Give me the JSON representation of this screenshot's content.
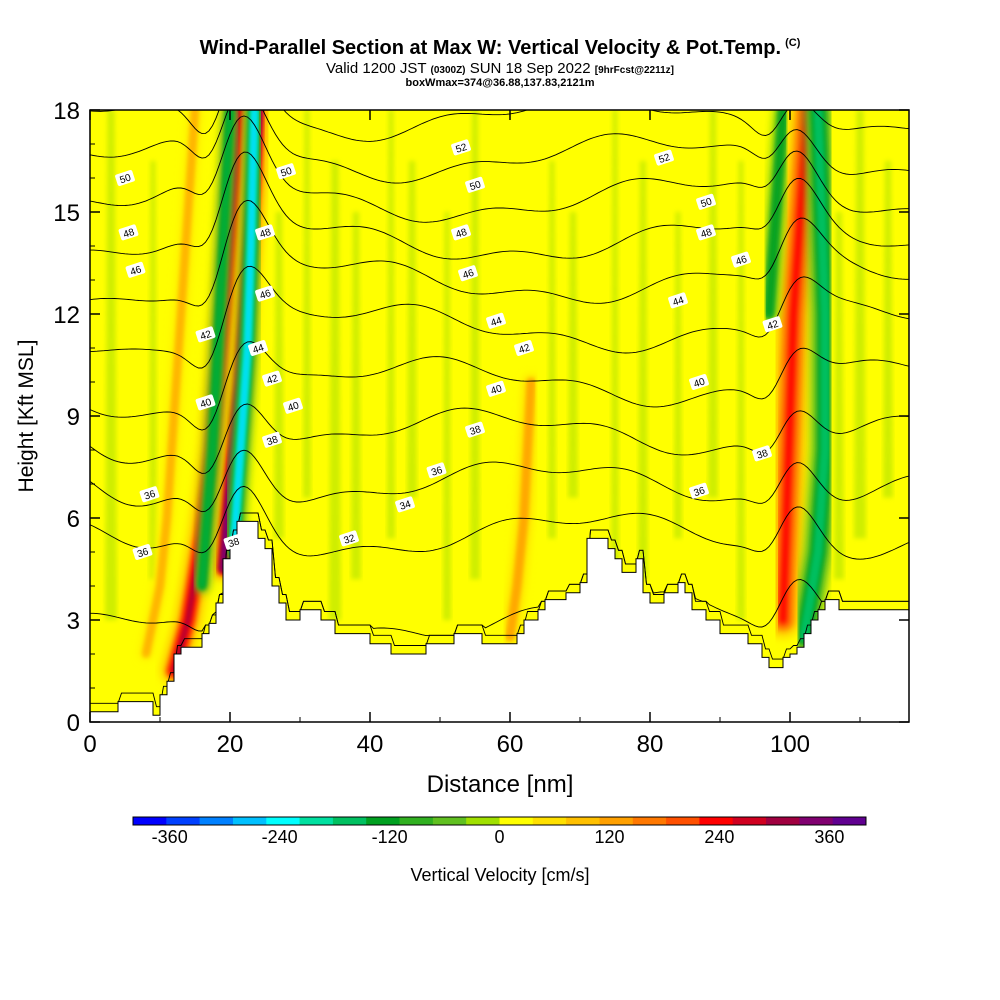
{
  "header": {
    "title": "Wind-Parallel Section at Max W: Vertical Velocity & Pot.Temp.",
    "title_mark": "(C)",
    "valid_prefix": "Valid 1200 JST",
    "valid_utc": "(0300Z)",
    "valid_date": "SUN 18 Sep 2022",
    "forecast": "[9hrFcst@2211z]",
    "box_info": "boxWmax=374@36.88,137.83,2121m"
  },
  "chart_data": {
    "type": "heatmap",
    "title": "Wind-Parallel Section at Max W: Vertical Velocity & Pot.Temp.",
    "xlabel": "Distance [nm]",
    "ylabel": "Height [Kft MSL]",
    "xlim": [
      0,
      117
    ],
    "ylim": [
      0,
      18
    ],
    "x_ticks": [
      "0",
      "20",
      "40",
      "60",
      "80",
      "100"
    ],
    "y_ticks": [
      "0",
      "3",
      "6",
      "9",
      "12",
      "15",
      "18"
    ],
    "colorbar": {
      "label": "Vertical Velocity [cm/s]",
      "tick_labels": [
        "-360",
        "-240",
        "-120",
        "0",
        "120",
        "240",
        "360"
      ],
      "range": [
        -400,
        400
      ],
      "colors": [
        "#0000ff",
        "#0040ff",
        "#0080ff",
        "#00c0ff",
        "#00ffff",
        "#00e0a0",
        "#00c060",
        "#00a020",
        "#30b020",
        "#60c020",
        "#a0e000",
        "#ffff00",
        "#ffe000",
        "#ffc000",
        "#ffa000",
        "#ff7800",
        "#ff5000",
        "#ff0000",
        "#d00020",
        "#a00040",
        "#800070",
        "#600090"
      ]
    },
    "terrain_kft": [
      [
        0,
        0.3
      ],
      [
        4,
        0.3
      ],
      [
        4,
        0.6
      ],
      [
        9,
        0.6
      ],
      [
        9,
        0.2
      ],
      [
        10,
        0.2
      ],
      [
        10,
        0.8
      ],
      [
        11,
        0.8
      ],
      [
        11,
        1.2
      ],
      [
        12,
        1.2
      ],
      [
        12,
        2
      ],
      [
        13,
        2
      ],
      [
        13,
        2.2
      ],
      [
        16,
        2.2
      ],
      [
        16,
        2.6
      ],
      [
        17,
        2.6
      ],
      [
        17,
        2.9
      ],
      [
        18,
        2.9
      ],
      [
        18,
        3.5
      ],
      [
        19,
        3.5
      ],
      [
        19,
        4.8
      ],
      [
        20,
        4.8
      ],
      [
        20,
        5.4
      ],
      [
        21,
        5.4
      ],
      [
        21,
        5.9
      ],
      [
        24,
        5.9
      ],
      [
        24,
        5.4
      ],
      [
        25,
        5.4
      ],
      [
        25,
        5.1
      ],
      [
        26,
        5.1
      ],
      [
        26,
        4
      ],
      [
        27,
        4
      ],
      [
        27,
        3.5
      ],
      [
        28,
        3.5
      ],
      [
        28,
        3
      ],
      [
        30,
        3
      ],
      [
        30,
        3.3
      ],
      [
        33,
        3.3
      ],
      [
        33,
        3
      ],
      [
        35,
        3
      ],
      [
        35,
        2.6
      ],
      [
        40,
        2.6
      ],
      [
        40,
        2.3
      ],
      [
        43,
        2.3
      ],
      [
        43,
        2
      ],
      [
        48,
        2
      ],
      [
        48,
        2.3
      ],
      [
        52,
        2.3
      ],
      [
        52,
        2.6
      ],
      [
        56,
        2.6
      ],
      [
        56,
        2.3
      ],
      [
        61,
        2.3
      ],
      [
        61,
        2.6
      ],
      [
        62,
        2.6
      ],
      [
        62,
        3
      ],
      [
        64,
        3
      ],
      [
        64,
        3.3
      ],
      [
        65,
        3.3
      ],
      [
        65,
        3.6
      ],
      [
        68,
        3.6
      ],
      [
        68,
        3.8
      ],
      [
        70,
        3.8
      ],
      [
        70,
        4.1
      ],
      [
        71,
        4.1
      ],
      [
        71,
        5.4
      ],
      [
        74,
        5.4
      ],
      [
        74,
        5.1
      ],
      [
        75,
        5.1
      ],
      [
        75,
        4.8
      ],
      [
        76,
        4.8
      ],
      [
        76,
        4.4
      ],
      [
        78,
        4.4
      ],
      [
        78,
        4.8
      ],
      [
        79,
        4.8
      ],
      [
        79,
        3.8
      ],
      [
        80,
        3.8
      ],
      [
        80,
        3.5
      ],
      [
        82,
        3.5
      ],
      [
        82,
        3.8
      ],
      [
        84,
        3.8
      ],
      [
        84,
        4.1
      ],
      [
        85,
        4.1
      ],
      [
        85,
        3.8
      ],
      [
        86,
        3.8
      ],
      [
        86,
        3.3
      ],
      [
        88,
        3.3
      ],
      [
        88,
        3
      ],
      [
        90,
        3
      ],
      [
        90,
        2.6
      ],
      [
        94,
        2.6
      ],
      [
        94,
        2.3
      ],
      [
        96,
        2.3
      ],
      [
        96,
        1.9
      ],
      [
        97,
        1.9
      ],
      [
        97,
        1.6
      ],
      [
        99,
        1.6
      ],
      [
        99,
        1.9
      ],
      [
        100,
        1.9
      ],
      [
        100,
        2
      ],
      [
        101,
        2
      ],
      [
        101,
        2.2
      ],
      [
        102,
        2.2
      ],
      [
        102,
        2.6
      ],
      [
        103,
        2.6
      ],
      [
        103,
        3
      ],
      [
        104,
        3
      ],
      [
        104,
        3.3
      ],
      [
        105,
        3.3
      ],
      [
        105,
        3.6
      ],
      [
        107,
        3.6
      ],
      [
        107,
        3.3
      ],
      [
        117,
        3.3
      ],
      [
        117,
        0
      ],
      [
        0,
        0
      ]
    ],
    "updrafts": [
      {
        "name": "ascent-band-1",
        "points": [
          [
            12,
            1.5
          ],
          [
            14,
            3
          ],
          [
            16,
            5.5
          ],
          [
            17.5,
            8
          ],
          [
            18.5,
            10.5
          ],
          [
            19.5,
            13
          ],
          [
            20.5,
            16
          ],
          [
            21,
            18
          ]
        ],
        "width_nm": 2.6,
        "w_peak": 280
      },
      {
        "name": "ascent-band-2",
        "points": [
          [
            19,
            4.5
          ],
          [
            20,
            7
          ],
          [
            21.5,
            10
          ],
          [
            22.5,
            13
          ],
          [
            23.5,
            16
          ],
          [
            24,
            18
          ]
        ],
        "width_nm": 2.0,
        "w_peak": 374
      },
      {
        "name": "ascent-band-3",
        "points": [
          [
            99,
            3
          ],
          [
            99.5,
            6
          ],
          [
            100,
            9
          ],
          [
            100.5,
            12
          ],
          [
            101.5,
            15
          ],
          [
            102.5,
            18
          ]
        ],
        "width_nm": 3.5,
        "w_peak": 220
      },
      {
        "name": "ascent-band-4",
        "points": [
          [
            60,
            2.5
          ],
          [
            61,
            4
          ],
          [
            62,
            6
          ],
          [
            62.5,
            8
          ],
          [
            63,
            10
          ]
        ],
        "width_nm": 1.2,
        "w_peak": 130
      },
      {
        "name": "ascent-band-5",
        "points": [
          [
            8,
            2
          ],
          [
            10,
            4
          ],
          [
            11,
            6
          ],
          [
            12,
            9
          ],
          [
            13,
            12
          ],
          [
            14,
            15
          ],
          [
            15,
            18
          ]
        ],
        "width_nm": 1.2,
        "w_peak": 110
      }
    ],
    "downdrafts": [
      {
        "name": "descent-band-1",
        "points": [
          [
            20.5,
            5
          ],
          [
            21.5,
            8
          ],
          [
            22.5,
            11
          ],
          [
            23,
            14
          ],
          [
            23.5,
            18
          ]
        ],
        "width_nm": 1.6,
        "w_peak": -260
      },
      {
        "name": "descent-band-2",
        "points": [
          [
            16,
            4
          ],
          [
            17.5,
            8
          ],
          [
            18.5,
            12
          ],
          [
            19.5,
            16
          ],
          [
            20,
            18
          ]
        ],
        "width_nm": 1.2,
        "w_peak": -150
      },
      {
        "name": "descent-band-3",
        "points": [
          [
            102,
            2.5
          ],
          [
            104,
            5
          ],
          [
            105,
            8
          ],
          [
            105,
            12
          ],
          [
            104.5,
            15
          ],
          [
            104,
            18
          ]
        ],
        "width_nm": 2.5,
        "w_peak": -160
      },
      {
        "name": "descent-band-4",
        "points": [
          [
            97,
            12
          ],
          [
            98,
            15
          ],
          [
            99,
            18
          ]
        ],
        "width_nm": 1.5,
        "w_peak": -120
      }
    ],
    "potential_temperature": {
      "levels_k": [
        30,
        32,
        34,
        36,
        38,
        40,
        42,
        44,
        46,
        48,
        50,
        52,
        54
      ],
      "base_kft": [
        0.4,
        3.1,
        5.5,
        7.0,
        8.5,
        10.0,
        11.6,
        13.0,
        14.2,
        15.4,
        16.6,
        17.8,
        19.0
      ],
      "labels": [
        {
          "text": "50",
          "x": 5,
          "y": 16
        },
        {
          "text": "48",
          "x": 5.5,
          "y": 14.4
        },
        {
          "text": "46",
          "x": 6.5,
          "y": 13.3
        },
        {
          "text": "36",
          "x": 8.5,
          "y": 6.7
        },
        {
          "text": "36",
          "x": 7.5,
          "y": 5.0
        },
        {
          "text": "42",
          "x": 16.5,
          "y": 11.4
        },
        {
          "text": "40",
          "x": 16.5,
          "y": 9.4
        },
        {
          "text": "50",
          "x": 28,
          "y": 16.2
        },
        {
          "text": "48",
          "x": 25,
          "y": 14.4
        },
        {
          "text": "46",
          "x": 25,
          "y": 12.6
        },
        {
          "text": "44",
          "x": 24,
          "y": 11.0
        },
        {
          "text": "42",
          "x": 26,
          "y": 10.1
        },
        {
          "text": "40",
          "x": 29,
          "y": 9.3
        },
        {
          "text": "38",
          "x": 26,
          "y": 8.3
        },
        {
          "text": "38",
          "x": 20.5,
          "y": 5.3
        },
        {
          "text": "36",
          "x": 49.5,
          "y": 7.4
        },
        {
          "text": "34",
          "x": 45,
          "y": 6.4
        },
        {
          "text": "32",
          "x": 37,
          "y": 5.4
        },
        {
          "text": "52",
          "x": 53,
          "y": 16.9
        },
        {
          "text": "50",
          "x": 55,
          "y": 15.8
        },
        {
          "text": "48",
          "x": 53,
          "y": 14.4
        },
        {
          "text": "46",
          "x": 54,
          "y": 13.2
        },
        {
          "text": "44",
          "x": 58,
          "y": 11.8
        },
        {
          "text": "42",
          "x": 62,
          "y": 11.0
        },
        {
          "text": "40",
          "x": 58,
          "y": 9.8
        },
        {
          "text": "38",
          "x": 55,
          "y": 8.6
        },
        {
          "text": "52",
          "x": 82,
          "y": 16.6
        },
        {
          "text": "50",
          "x": 88,
          "y": 15.3
        },
        {
          "text": "48",
          "x": 88,
          "y": 14.4
        },
        {
          "text": "46",
          "x": 93,
          "y": 13.6
        },
        {
          "text": "44",
          "x": 84,
          "y": 12.4
        },
        {
          "text": "42",
          "x": 97.5,
          "y": 11.7
        },
        {
          "text": "40",
          "x": 87,
          "y": 10.0
        },
        {
          "text": "38",
          "x": 96,
          "y": 7.9
        },
        {
          "text": "36",
          "x": 87,
          "y": 6.8
        }
      ]
    }
  }
}
